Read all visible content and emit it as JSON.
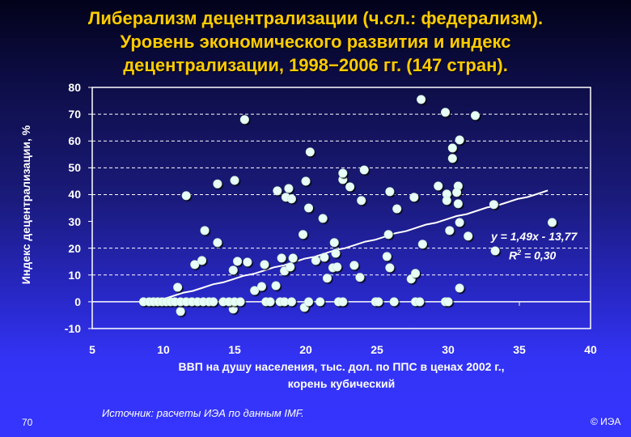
{
  "slide": {
    "title_lines": [
      "Либерализм децентрализации (ч.сл.: федерализм).",
      "Уровень экономического развития и индекс",
      "децентрализации, 1998−2006 гг. (147 стран)."
    ],
    "source": "Источник: расчеты ИЭА по данным IMF.",
    "slide_number": "70",
    "copyright": "© ИЭА",
    "colors": {
      "title": "#ffcc00",
      "marker_fill": "#e8fff8",
      "marker_shadow": "#000000",
      "trendline": "#ffffff",
      "grid": "#ffffff"
    }
  },
  "chart_data": {
    "type": "scatter",
    "title": "Либерализм децентрализации (ч.сл.: федерализм). Уровень экономического развития и индекс децентрализации, 1998−2006 гг. (147 стран).",
    "xlabel": "ВВП на душу населения, тыс. дол. по ППС в ценах 2002 г., корень кубический",
    "xlabel_lines": [
      "ВВП на душу населения, тыс. дол. по ППС в ценах 2002 г.,",
      "корень кубический"
    ],
    "ylabel": "Индекс децентрализации, %",
    "xlim": [
      5,
      40
    ],
    "ylim": [
      -10,
      80
    ],
    "xticks": [
      5,
      10,
      15,
      20,
      25,
      30,
      35,
      40
    ],
    "yticks": [
      80,
      70,
      60,
      50,
      40,
      30,
      20,
      10,
      0,
      -10
    ],
    "grid": {
      "horizontal_dashed": [
        70,
        60,
        50,
        40,
        20,
        10
      ],
      "zero_line_solid": true
    },
    "trendline": {
      "equation": "y = 1,49x - 13,77",
      "r2_label": "R",
      "r2_exp": "2",
      "r2_value": "= 0,30",
      "slope": 1.49,
      "intercept": -13.77,
      "r2": 0.3,
      "x_range": [
        8.5,
        37.0
      ]
    },
    "points": [
      [
        15.7,
        68
      ],
      [
        28.1,
        75.5
      ],
      [
        29.8,
        70.7
      ],
      [
        31.9,
        69.5
      ],
      [
        30.8,
        60.4
      ],
      [
        30.3,
        57.4
      ],
      [
        30.3,
        53.5
      ],
      [
        20.3,
        55.9
      ],
      [
        24.1,
        49.2
      ],
      [
        22.6,
        45.6
      ],
      [
        22.6,
        48
      ],
      [
        20,
        45
      ],
      [
        15,
        45.3
      ],
      [
        13.8,
        44
      ],
      [
        11.6,
        39.6
      ],
      [
        18,
        41.4
      ],
      [
        18.8,
        42.3
      ],
      [
        18.6,
        39
      ],
      [
        19,
        38.4
      ],
      [
        23.1,
        42.9
      ],
      [
        23.9,
        37.8
      ],
      [
        25.9,
        41.1
      ],
      [
        27.6,
        39
      ],
      [
        29.3,
        43.2
      ],
      [
        29.9,
        40.2
      ],
      [
        30.7,
        43.2
      ],
      [
        30.6,
        40.8
      ],
      [
        29.9,
        37.8
      ],
      [
        30.7,
        36.6
      ],
      [
        20.2,
        35
      ],
      [
        21.2,
        31.1
      ],
      [
        26.4,
        34.7
      ],
      [
        33.2,
        36.3
      ],
      [
        30.8,
        29.6
      ],
      [
        30.1,
        26.6
      ],
      [
        31.4,
        24.5
      ],
      [
        37.3,
        29.6
      ],
      [
        12.9,
        26.6
      ],
      [
        13.8,
        22.1
      ],
      [
        19.8,
        25.1
      ],
      [
        22,
        22.1
      ],
      [
        22.1,
        18.1
      ],
      [
        25.8,
        25.1
      ],
      [
        28.2,
        21.5
      ],
      [
        33.3,
        19
      ],
      [
        12.2,
        13.9
      ],
      [
        12.7,
        15.4
      ],
      [
        14.9,
        11.8
      ],
      [
        15.2,
        15.1
      ],
      [
        15.9,
        14.8
      ],
      [
        17.1,
        13.9
      ],
      [
        18.3,
        16.3
      ],
      [
        19.1,
        16.3
      ],
      [
        18.5,
        11.5
      ],
      [
        18.9,
        13
      ],
      [
        20.7,
        15.4
      ],
      [
        21.3,
        16.6
      ],
      [
        21.5,
        8.8
      ],
      [
        21.9,
        12.7
      ],
      [
        22.2,
        13
      ],
      [
        23.4,
        13.6
      ],
      [
        23.8,
        9.1
      ],
      [
        25.7,
        16.9
      ],
      [
        25.9,
        12.7
      ],
      [
        27.4,
        8.5
      ],
      [
        27.7,
        10.6
      ],
      [
        11,
        5.4
      ],
      [
        16.4,
        4.2
      ],
      [
        16.9,
        5.7
      ],
      [
        17.9,
        6
      ],
      [
        30.8,
        5.1
      ],
      [
        11.2,
        -3.6
      ],
      [
        14.9,
        -2.7
      ],
      [
        19.9,
        -2.1
      ],
      [
        8.6,
        0
      ],
      [
        9.0,
        0
      ],
      [
        9.3,
        0
      ],
      [
        9.6,
        0
      ],
      [
        9.9,
        0
      ],
      [
        10.2,
        0
      ],
      [
        10.5,
        0
      ],
      [
        10.8,
        0
      ],
      [
        11.2,
        0
      ],
      [
        11.6,
        0
      ],
      [
        12.0,
        0
      ],
      [
        12.4,
        0
      ],
      [
        12.8,
        0
      ],
      [
        13.2,
        0
      ],
      [
        13.5,
        0
      ],
      [
        14.2,
        0
      ],
      [
        14.6,
        0
      ],
      [
        15.0,
        0
      ],
      [
        15.4,
        0
      ],
      [
        17.2,
        0
      ],
      [
        17.5,
        0
      ],
      [
        18.2,
        0
      ],
      [
        18.5,
        0
      ],
      [
        19.0,
        0
      ],
      [
        20.2,
        0
      ],
      [
        21.0,
        0
      ],
      [
        22.3,
        0
      ],
      [
        22.6,
        0
      ],
      [
        24.9,
        0
      ],
      [
        25.1,
        0
      ],
      [
        26.2,
        0
      ],
      [
        27.7,
        0
      ],
      [
        28.0,
        0
      ],
      [
        29.8,
        0
      ],
      [
        30.0,
        0
      ]
    ]
  }
}
